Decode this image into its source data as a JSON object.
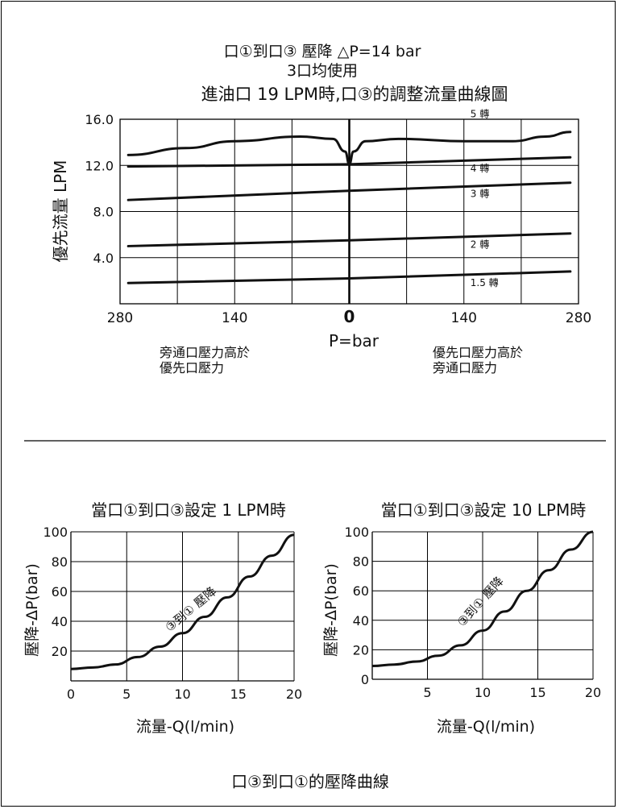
{
  "top": {
    "title_lines": [
      "口①到口③ 壓降 △P=14 bar",
      "3口均使用",
      "進油口 19 LPM時,口③的調整流量曲線圖"
    ],
    "ylabel": "優先流量 LPM",
    "xlabel": "P=bar",
    "note_left": [
      "旁通口壓力高於",
      "優先口壓力"
    ],
    "note_right": [
      "優先口壓力高於",
      "旁通口壓力"
    ]
  },
  "bottom": {
    "caption": "口③到口①的壓降曲線"
  },
  "chart_data": [
    {
      "type": "line",
      "title": "口①到口③ 壓降 △P=14 bar / 3口均使用 / 進油口 19 LPM時,口③的調整流量曲線圖",
      "xlabel": "P=bar",
      "ylabel": "優先流量 LPM",
      "xticks": [
        "280",
        "140",
        "0",
        "140",
        "280"
      ],
      "yticks": [
        "4.0",
        "8.0",
        "12.0",
        "16.0"
      ],
      "xlim": [
        -280,
        280
      ],
      "ylim": [
        0,
        16
      ],
      "grid": true,
      "x": [
        -270,
        -140,
        0,
        140,
        270
      ],
      "series": [
        {
          "name": "5 轉",
          "x": [
            -270,
            -200,
            -140,
            -60,
            -20,
            -5,
            0,
            5,
            20,
            60,
            140,
            200,
            240,
            270
          ],
          "values": [
            12.9,
            13.5,
            14.1,
            14.5,
            14.3,
            13.2,
            12.1,
            13.2,
            14.1,
            14.3,
            14.1,
            14.1,
            14.5,
            14.9
          ]
        },
        {
          "name": "4 轉",
          "x": [
            -270,
            0,
            270
          ],
          "values": [
            11.9,
            12.1,
            12.7
          ]
        },
        {
          "name": "3 轉",
          "x": [
            -270,
            0,
            270
          ],
          "values": [
            9.0,
            9.8,
            10.5
          ]
        },
        {
          "name": "2 轉",
          "x": [
            -270,
            0,
            270
          ],
          "values": [
            5.0,
            5.5,
            6.1
          ]
        },
        {
          "name": "1.5 轉",
          "x": [
            -270,
            0,
            270
          ],
          "values": [
            1.8,
            2.2,
            2.8
          ]
        }
      ]
    },
    {
      "type": "line",
      "title": "當口①到口③設定 1 LPM時",
      "xlabel": "流量-Q(l/min)",
      "ylabel": "壓降-ΔP(bar)",
      "xlim": [
        0,
        20
      ],
      "ylim": [
        0,
        100
      ],
      "xticks": [
        "0",
        "5",
        "10",
        "15",
        "20"
      ],
      "yticks": [
        "20",
        "40",
        "60",
        "80",
        "100"
      ],
      "grid": true,
      "annotation": "③到① 壓降",
      "series": [
        {
          "name": "③到① 壓降",
          "x": [
            0,
            2,
            4,
            6,
            8,
            10,
            12,
            14,
            16,
            18,
            20
          ],
          "values": [
            8,
            9,
            11,
            16,
            23,
            32,
            43,
            56,
            70,
            84,
            98
          ]
        }
      ]
    },
    {
      "type": "line",
      "title": "當口①到口③設定 10 LPM時",
      "xlabel": "流量-Q(l/min)",
      "ylabel": "壓降-ΔP(bar)",
      "xlim": [
        0,
        20
      ],
      "ylim": [
        0,
        100
      ],
      "xticks": [
        "5",
        "10",
        "15",
        "20"
      ],
      "yticks": [
        "0",
        "20",
        "40",
        "60",
        "80",
        "100"
      ],
      "grid": true,
      "annotation": "③到① 壓降",
      "series": [
        {
          "name": "③到① 壓降",
          "x": [
            0,
            2,
            4,
            6,
            8,
            10,
            12,
            14,
            16,
            18,
            20
          ],
          "values": [
            9,
            10,
            12,
            16,
            23,
            33,
            46,
            60,
            74,
            88,
            100
          ]
        }
      ]
    }
  ]
}
